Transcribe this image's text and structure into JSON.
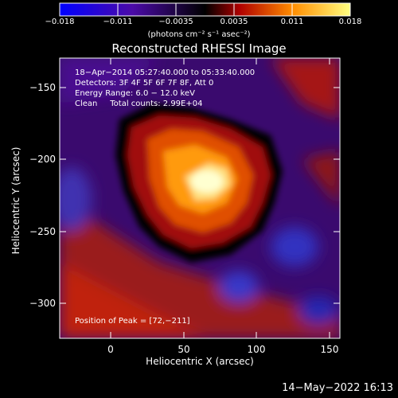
{
  "colorbar": {
    "tick_labels": [
      "−0.018",
      "−0.011",
      "−0.0035",
      "0.0035",
      "0.011",
      "0.018"
    ],
    "units": "(photons cm⁻² s⁻¹ asec⁻²)",
    "colors": [
      "#0000ff",
      "#4b0aa8",
      "#000000",
      "#b00000",
      "#ff8c00",
      "#ffff80"
    ]
  },
  "title": "Reconstructed RHESSI Image",
  "info": {
    "line1": "18−Apr−2014 05:27:40.000 to 05:33:40.000",
    "line2": "Detectors: 3F 4F 5F 6F 7F 8F, Att 0",
    "line3": "Energy Range: 6.0 − 12.0 keV",
    "line4": "Clean     Total counts: 2.99E+04",
    "peak": "Position of Peak = [72,−211]"
  },
  "axes": {
    "xlabel": "Heliocentric X (arcsec)",
    "ylabel": "Heliocentric Y (arcsec)",
    "xticks": [
      "0",
      "50",
      "100",
      "150"
    ],
    "yticks": [
      "−150",
      "−200",
      "−250",
      "−300"
    ],
    "xrange": [
      -35,
      155
    ],
    "yrange": [
      -327,
      -132
    ]
  },
  "timestamp": "14−May−2022 16:13"
}
